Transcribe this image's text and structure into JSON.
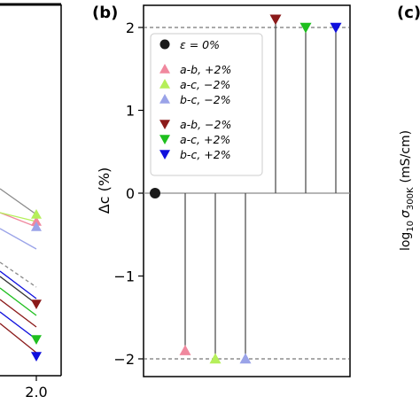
{
  "colors": {
    "black": "#1a1a1a",
    "pink": "#f0889e",
    "lime": "#b5ef5a",
    "lavender": "#9aa3e8",
    "maroon": "#8b1a1a",
    "green": "#1fbf1f",
    "blue": "#1010dd",
    "gray_line": "#8a8a8a",
    "stem": "#444444"
  },
  "left_panel": {
    "tick_label": "2.0",
    "markers": [
      {
        "shape": "triangle-up",
        "color": "pink"
      },
      {
        "shape": "triangle-up",
        "color": "lime"
      },
      {
        "shape": "triangle-up",
        "color": "lavender"
      },
      {
        "shape": "triangle-down",
        "color": "maroon"
      },
      {
        "shape": "triangle-down",
        "color": "green"
      },
      {
        "shape": "triangle-down",
        "color": "blue"
      }
    ]
  },
  "right_panel": {
    "panel_label": "(c)",
    "ylabel_main": "log",
    "ylabel_sub": "10",
    "ylabel_sigma": "σ",
    "ylabel_sigma_sub": "300K",
    "ylabel_unit": "(mS/cm)"
  },
  "chart_data": {
    "type": "scatter",
    "style": "stem",
    "panel_label": "(b)",
    "ylabel": "Δc (%)",
    "ylim": [
      -2.2,
      2.1
    ],
    "yticks": [
      "−2",
      "−1",
      "0",
      "1",
      "2"
    ],
    "ytick_values": [
      -2,
      -1,
      0,
      1,
      2
    ],
    "reference_lines": [
      -2,
      2
    ],
    "xticks": [],
    "legend_position": "upper-left",
    "legend_groups": [
      [
        {
          "label": "ε = 0%",
          "color": "black",
          "marker": "circle"
        }
      ],
      [
        {
          "label": "a-b, +2%",
          "color": "pink",
          "marker": "triangle-up"
        },
        {
          "label": "a-c, −2%",
          "color": "lime",
          "marker": "triangle-up"
        },
        {
          "label": "b-c, −2%",
          "color": "lavender",
          "marker": "triangle-up"
        }
      ],
      [
        {
          "label": "a-b, −2%",
          "color": "maroon",
          "marker": "triangle-down"
        },
        {
          "label": "a-c, +2%",
          "color": "green",
          "marker": "triangle-down"
        },
        {
          "label": "b-c, +2%",
          "color": "blue",
          "marker": "triangle-down"
        }
      ]
    ],
    "series": [
      {
        "name": "ε = 0%",
        "y": 0,
        "color": "black",
        "marker": "circle"
      },
      {
        "name": "a-b, +2%",
        "y": -1.9,
        "color": "pink",
        "marker": "triangle-up"
      },
      {
        "name": "a-c, −2%",
        "y": -2.0,
        "color": "lime",
        "marker": "triangle-up"
      },
      {
        "name": "b-c, −2%",
        "y": -2.0,
        "color": "lavender",
        "marker": "triangle-up"
      },
      {
        "name": "a-b, −2%",
        "y": 2.1,
        "color": "maroon",
        "marker": "triangle-down"
      },
      {
        "name": "a-c, +2%",
        "y": 2.0,
        "color": "green",
        "marker": "triangle-down"
      },
      {
        "name": "b-c, +2%",
        "y": 2.0,
        "color": "blue",
        "marker": "triangle-down"
      }
    ]
  }
}
